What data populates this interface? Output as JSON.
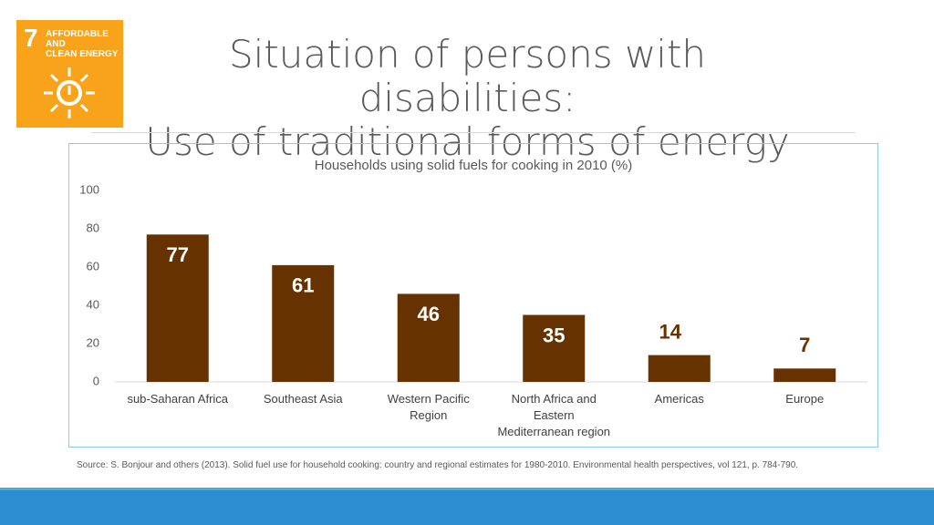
{
  "header": {
    "icon": {
      "number": "7",
      "lines": [
        "AFFORDABLE AND",
        "CLEAN ENERGY"
      ]
    },
    "title": [
      "Situation of persons with disabilities:",
      "Use of traditional forms of energy"
    ]
  },
  "chart_data": {
    "type": "bar",
    "title": "Households using solid fuels for cooking in 2010 (%)",
    "categories": [
      "sub-Saharan Africa",
      "Southeast Asia",
      "Western Pacific Region",
      "North Africa and Eastern Mediterranean region",
      "Americas",
      "Europe"
    ],
    "values": [
      77,
      61,
      46,
      35,
      14,
      7
    ],
    "color": "#663300",
    "ylim": [
      0,
      100
    ],
    "yticks": [
      0,
      20,
      40,
      60,
      80,
      100
    ],
    "grid": false
  },
  "footer": {
    "source": "Source: S. Bonjour and others (2013). Solid fuel use for household cooking: country and regional estimates for 1980-2010. Environmental health perspectives, vol 121, p. 784-790."
  }
}
